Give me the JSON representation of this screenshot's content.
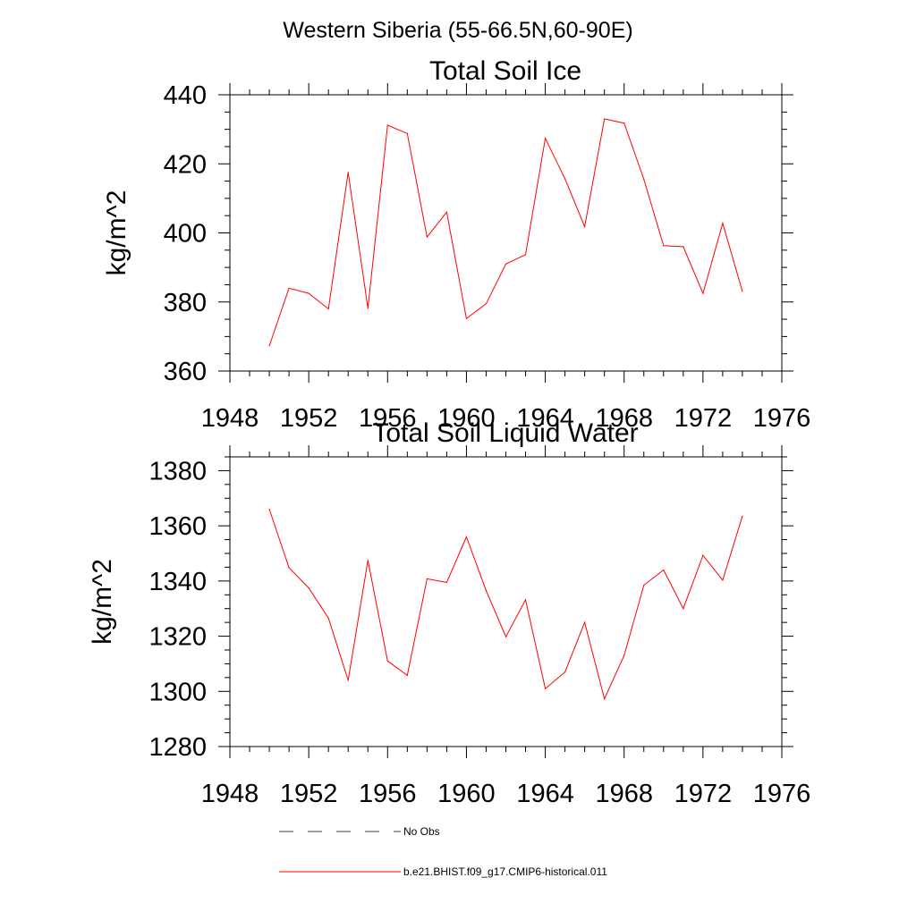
{
  "figure": {
    "suptitle": "Western Siberia (55-66.5N,60-90E)"
  },
  "legend": {
    "placement": "bottom",
    "entries": [
      {
        "label": "No Obs",
        "color": "#3b3b6b",
        "style": "dashed"
      },
      {
        "label": "b.e21.BHIST.f09_g17.CMIP6-historical.011",
        "color": "#ff0000",
        "style": "solid"
      }
    ]
  },
  "chart_data": [
    {
      "type": "line",
      "title": "Total Soil Ice",
      "ylabel": "kg/m^2",
      "xlabel": "",
      "xlim": [
        1948,
        1976
      ],
      "ylim": [
        360,
        440
      ],
      "xticks": [
        1948,
        1952,
        1956,
        1960,
        1964,
        1968,
        1972,
        1976
      ],
      "yticks": [
        360,
        380,
        400,
        420,
        440
      ],
      "grid": false,
      "x": [
        1950,
        1951,
        1952,
        1953,
        1954,
        1955,
        1956,
        1957,
        1958,
        1959,
        1960,
        1961,
        1962,
        1963,
        1964,
        1965,
        1966,
        1967,
        1968,
        1969,
        1970,
        1971,
        1972,
        1973,
        1974
      ],
      "series": [
        {
          "name": "b.e21.BHIST.f09_g17.CMIP6-historical.011",
          "color": "#ff0000",
          "values": [
            367.3,
            384.0,
            382.5,
            378.0,
            417.5,
            378.2,
            431.2,
            428.8,
            398.8,
            406.0,
            375.2,
            379.5,
            391.0,
            393.7,
            427.4,
            415.7,
            401.8,
            433.0,
            431.8,
            415.5,
            396.3,
            396.0,
            382.5,
            402.8,
            383.1
          ]
        }
      ]
    },
    {
      "type": "line",
      "title": "Total Soil Liquid Water",
      "ylabel": "kg/m^2",
      "xlabel": "",
      "xlim": [
        1948,
        1976
      ],
      "ylim": [
        1280,
        1385
      ],
      "xticks": [
        1948,
        1952,
        1956,
        1960,
        1964,
        1968,
        1972,
        1976
      ],
      "yticks": [
        1280,
        1300,
        1320,
        1340,
        1360,
        1380
      ],
      "grid": false,
      "x": [
        1950,
        1951,
        1952,
        1953,
        1954,
        1955,
        1956,
        1957,
        1958,
        1959,
        1960,
        1961,
        1962,
        1963,
        1964,
        1965,
        1966,
        1967,
        1968,
        1969,
        1970,
        1971,
        1972,
        1973,
        1974
      ],
      "series": [
        {
          "name": "b.e21.BHIST.f09_g17.CMIP6-historical.011",
          "color": "#ff0000",
          "values": [
            1366.0,
            1344.8,
            1337.5,
            1326.5,
            1304.0,
            1347.5,
            1311.0,
            1305.8,
            1340.8,
            1339.5,
            1356.0,
            1336.5,
            1319.8,
            1333.2,
            1301.0,
            1307.0,
            1325.0,
            1297.3,
            1313.0,
            1338.5,
            1344.0,
            1330.0,
            1349.3,
            1340.3,
            1363.5
          ]
        }
      ]
    }
  ]
}
